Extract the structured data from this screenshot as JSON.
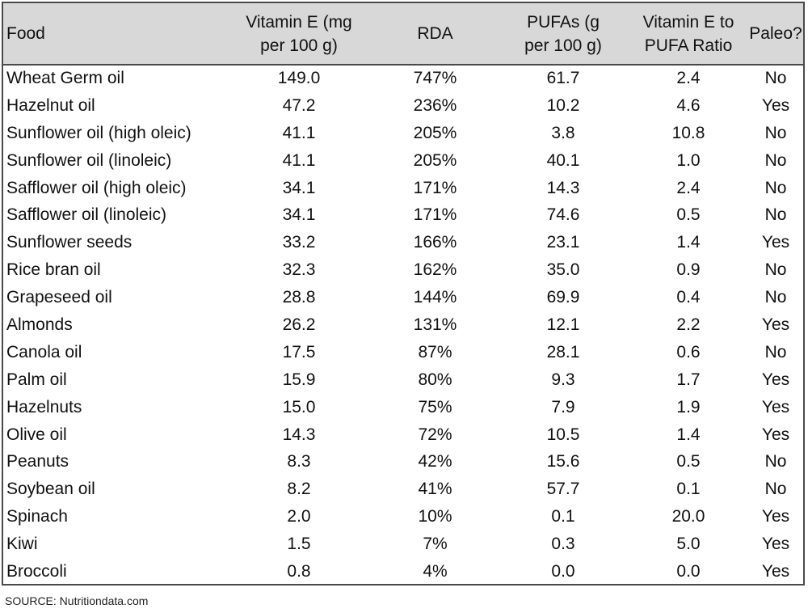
{
  "chart_data": {
    "type": "table",
    "columns": [
      "Food",
      "Vitamin E (mg per 100 g)",
      "RDA",
      "PUFAs (g per 100 g)",
      "Vitamin E to PUFA Ratio",
      "Paleo?"
    ],
    "header_lines": [
      [
        "Food"
      ],
      [
        "Vitamin E (mg",
        "per 100 g)"
      ],
      [
        "RDA"
      ],
      [
        "PUFAs (g",
        "per 100 g)"
      ],
      [
        "Vitamin E to",
        "PUFA Ratio"
      ],
      [
        "Paleo?"
      ]
    ],
    "rows": [
      [
        "Wheat Germ oil",
        "149.0",
        "747%",
        "61.7",
        "2.4",
        "No"
      ],
      [
        "Hazelnut oil",
        "47.2",
        "236%",
        "10.2",
        "4.6",
        "Yes"
      ],
      [
        "Sunflower oil (high oleic)",
        "41.1",
        "205%",
        "3.8",
        "10.8",
        "No"
      ],
      [
        "Sunflower oil (linoleic)",
        "41.1",
        "205%",
        "40.1",
        "1.0",
        "No"
      ],
      [
        "Safflower oil (high oleic)",
        "34.1",
        "171%",
        "14.3",
        "2.4",
        "No"
      ],
      [
        "Safflower oil (linoleic)",
        "34.1",
        "171%",
        "74.6",
        "0.5",
        "No"
      ],
      [
        "Sunflower seeds",
        "33.2",
        "166%",
        "23.1",
        "1.4",
        "Yes"
      ],
      [
        "Rice bran oil",
        "32.3",
        "162%",
        "35.0",
        "0.9",
        "No"
      ],
      [
        "Grapeseed oil",
        "28.8",
        "144%",
        "69.9",
        "0.4",
        "No"
      ],
      [
        "Almonds",
        "26.2",
        "131%",
        "12.1",
        "2.2",
        "Yes"
      ],
      [
        "Canola oil",
        "17.5",
        "87%",
        "28.1",
        "0.6",
        "No"
      ],
      [
        "Palm oil",
        "15.9",
        "80%",
        "9.3",
        "1.7",
        "Yes"
      ],
      [
        "Hazelnuts",
        "15.0",
        "75%",
        "7.9",
        "1.9",
        "Yes"
      ],
      [
        "Olive oil",
        "14.3",
        "72%",
        "10.5",
        "1.4",
        "Yes"
      ],
      [
        "Peanuts",
        "8.3",
        "42%",
        "15.6",
        "0.5",
        "No"
      ],
      [
        "Soybean oil",
        "8.2",
        "41%",
        "57.7",
        "0.1",
        "No"
      ],
      [
        "Spinach",
        "2.0",
        "10%",
        "0.1",
        "20.0",
        "Yes"
      ],
      [
        "Kiwi",
        "1.5",
        "7%",
        "0.3",
        "5.0",
        "Yes"
      ],
      [
        "Broccoli",
        "0.8",
        "4%",
        "0.0",
        "0.0",
        "Yes"
      ]
    ],
    "source": "SOURCE: Nutritiondata.com"
  },
  "colors": {
    "header_background": "#d8d8d8",
    "border": "#4a4a4a",
    "text": "#111111"
  }
}
